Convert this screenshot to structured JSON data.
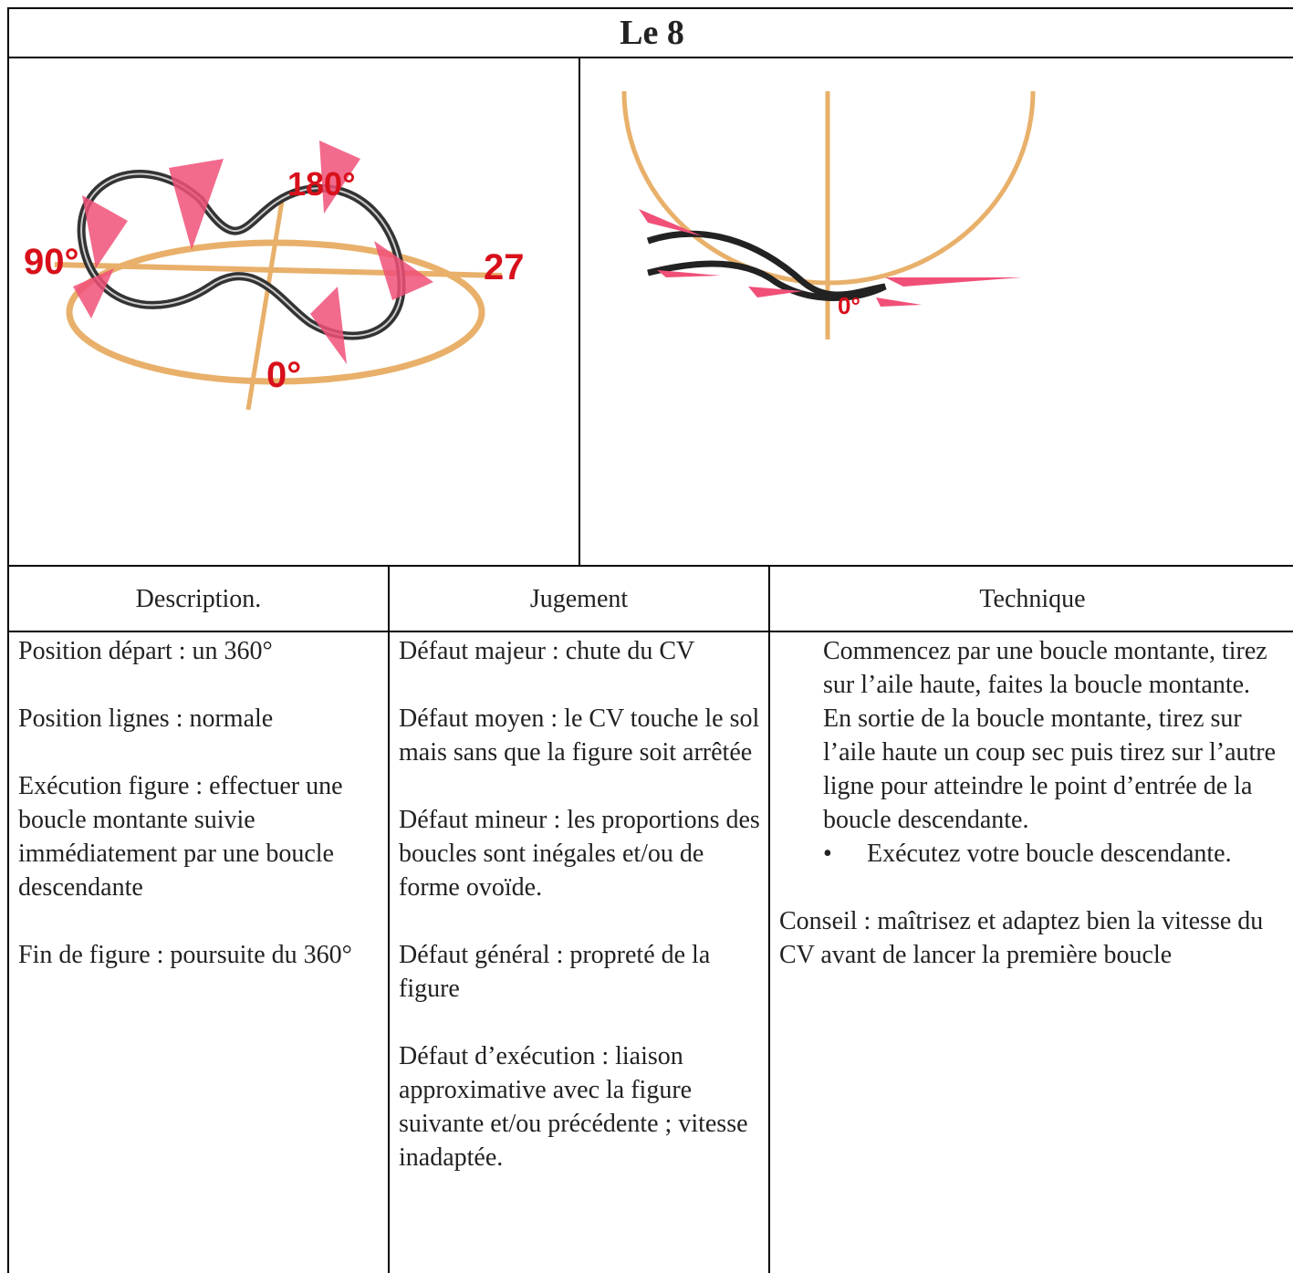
{
  "title": "Le 8",
  "images": {
    "left_labels": [
      "90°",
      "180°",
      "27",
      "0°"
    ],
    "right_labels": [
      "0°"
    ]
  },
  "table": {
    "headers": [
      "Description.",
      "Jugement",
      "Technique"
    ],
    "description": [
      "Position départ : un 360°",
      "Position lignes : normale",
      "Exécution figure : effectuer une boucle montante suivie immédiatement par une boucle descendante",
      "Fin de figure : poursuite du 360°"
    ],
    "jugement": [
      "Défaut majeur : chute du CV",
      "Défaut moyen : le CV touche le sol mais sans que la figure soit arrêtée",
      "Défaut mineur : les proportions des boucles sont inégales et/ou de forme ovoïde.",
      "Défaut général : propreté de la figure",
      "Défaut d’exécution : liaison approximative avec la figure suivante  et/ou précédente ; vitesse inadaptée."
    ],
    "technique": {
      "steps": [
        "Commencez par une boucle montante, tirez sur l’aile haute, faites la boucle montante.",
        "En sortie de la boucle montante, tirez sur l’aile haute un coup sec puis tirez sur l’autre ligne pour atteindre le point d’entrée de la boucle descendante."
      ],
      "bullet": "Exécutez votre boucle descendante.",
      "advice": "Conseil : maîtrisez et adaptez bien la vitesse du CV avant de lancer la première boucle"
    }
  }
}
